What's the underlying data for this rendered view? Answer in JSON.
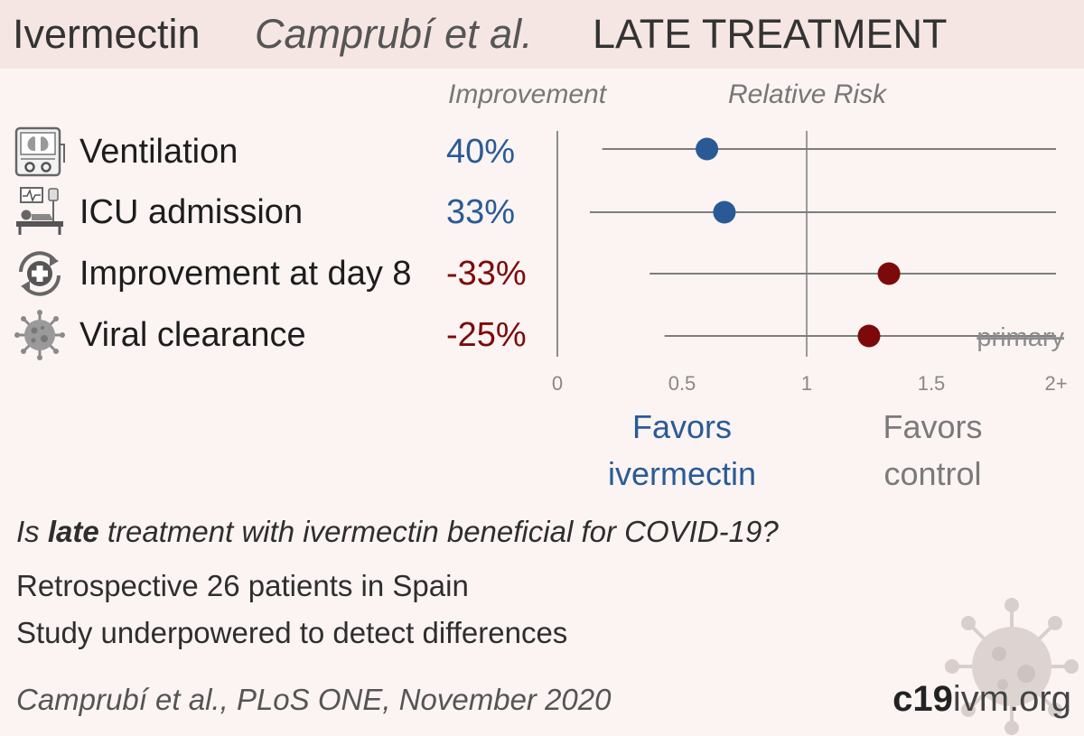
{
  "header": {
    "drug": "Ivermectin",
    "study": "Camprubí et al.",
    "stage": "LATE TREATMENT"
  },
  "columns": {
    "improvement": "Improvement",
    "relative_risk": "Relative Risk"
  },
  "icons": [
    "ventilator-icon",
    "icu-bed-icon",
    "recovery-icon",
    "virus-icon"
  ],
  "colors": {
    "favors_ivermectin": "#2a5a96",
    "favors_control": "#7d0a0a",
    "header_bg": "#f5e6e3",
    "background": "#fbf4f3"
  },
  "chart_data": {
    "type": "forest",
    "title": "",
    "xlabel": "Relative Risk",
    "xlim": [
      0,
      2
    ],
    "xticks": [
      "0",
      "0.5",
      "1",
      "1.5",
      "2+"
    ],
    "reference_line": 1,
    "rows": [
      {
        "label": "Ventilation",
        "improvement": "40%",
        "rr": 0.6,
        "ci_low": 0.18,
        "ci_high": 2.0,
        "favors": "ivermectin"
      },
      {
        "label": "ICU admission",
        "improvement": "33%",
        "rr": 0.67,
        "ci_low": 0.13,
        "ci_high": 2.0,
        "favors": "ivermectin"
      },
      {
        "label": "Improvement at day 8",
        "improvement": "-33%",
        "rr": 1.33,
        "ci_low": 0.37,
        "ci_high": 2.0,
        "favors": "control"
      },
      {
        "label": "Viral clearance",
        "improvement": "-25%",
        "rr": 1.25,
        "ci_low": 0.43,
        "ci_high": 2.0,
        "favors": "control",
        "note": "primary"
      }
    ],
    "favors_left": [
      "Favors",
      "ivermectin"
    ],
    "favors_right": [
      "Favors",
      "control"
    ]
  },
  "footer": {
    "question_pre": "Is ",
    "question_bold": "late",
    "question_post": " treatment with ivermectin beneficial for COVID-19?",
    "line1": "Retrospective 26 patients in Spain",
    "line2": "Study underpowered to detect differences",
    "citation": "Camprubí et al., PLoS ONE, November 2020",
    "logo_bold": "c19",
    "logo_regular": "ivm.org"
  }
}
